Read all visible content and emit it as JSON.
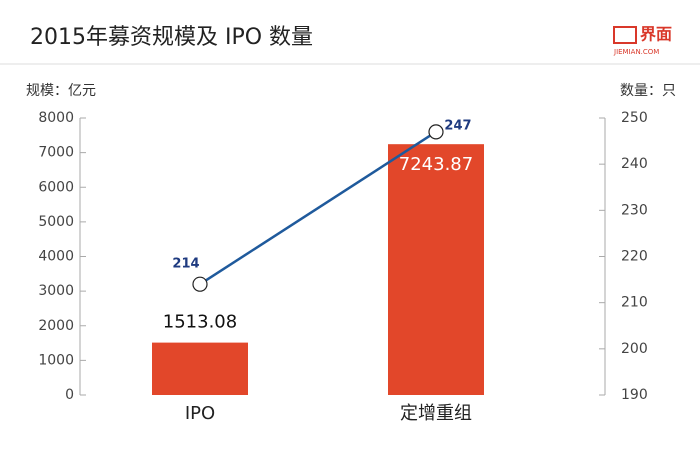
{
  "chart_data": {
    "type": "combo",
    "title": "2015年募资规模及 IPO 数量",
    "logo": "界面",
    "logo_sub": "JIEMIAN.COM",
    "y_label": "规模：亿元",
    "y2_label": "数量：只",
    "categories": [
      "IPO",
      "定增重组"
    ],
    "series": [
      {
        "type": "bar",
        "color": "#e2472a",
        "values": [
          1513.08,
          7243.87
        ]
      },
      {
        "type": "line",
        "color": "#1f5a9c",
        "axis": "y2",
        "values": [
          214,
          247
        ]
      }
    ],
    "ylim": [
      0,
      8000
    ],
    "yticks": [
      0,
      1000,
      2000,
      3000,
      4000,
      5000,
      6000,
      7000,
      8000
    ],
    "y2lim": [
      190,
      250
    ],
    "y2ticks": [
      190,
      200,
      210,
      220,
      230,
      240,
      250
    ]
  }
}
